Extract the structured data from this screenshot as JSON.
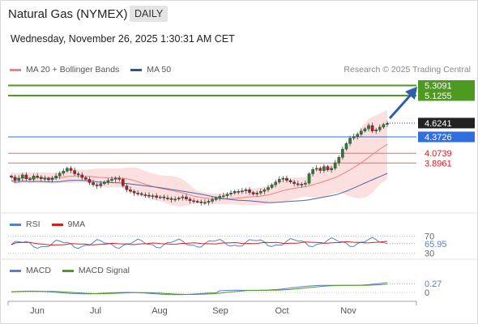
{
  "header": {
    "title": "Natural Gas (NYMEX)",
    "period": "DAILY",
    "datetime": "Wednesday, November 26, 2025 1:30:31 AM CET"
  },
  "legend_main": [
    {
      "label": "MA 20 + Bollinger Bands",
      "color": "#f28080"
    },
    {
      "label": "MA 50",
      "color": "#2f5597"
    }
  ],
  "credit": "Research © 2025 Trading Central",
  "legend_rsi": [
    {
      "label": "RSI",
      "color": "#5b7fcf"
    },
    {
      "label": "9MA",
      "color": "#d62020"
    }
  ],
  "legend_macd": [
    {
      "label": "MACD",
      "color": "#5b7fcf"
    },
    {
      "label": "MACD Signal",
      "color": "#4e9a20"
    }
  ],
  "chart_data": {
    "type": "candlestick",
    "x_labels": [
      "Jun",
      "Jul",
      "Aug",
      "Sep",
      "Oct",
      "Nov"
    ],
    "closes": [
      3.64,
      3.58,
      3.62,
      3.68,
      3.61,
      3.6,
      3.66,
      3.64,
      3.61,
      3.62,
      3.59,
      3.62,
      3.66,
      3.71,
      3.75,
      3.8,
      3.76,
      3.7,
      3.68,
      3.63,
      3.6,
      3.54,
      3.5,
      3.48,
      3.52,
      3.55,
      3.58,
      3.6,
      3.62,
      3.6,
      3.48,
      3.41,
      3.38,
      3.35,
      3.34,
      3.32,
      3.31,
      3.29,
      3.3,
      3.27,
      3.28,
      3.26,
      3.25,
      3.23,
      3.24,
      3.26,
      3.28,
      3.24,
      3.21,
      3.2,
      3.19,
      3.17,
      3.18,
      3.2,
      3.23,
      3.26,
      3.29,
      3.3,
      3.33,
      3.35,
      3.38,
      3.37,
      3.39,
      3.41,
      3.36,
      3.33,
      3.35,
      3.38,
      3.41,
      3.45,
      3.5,
      3.55,
      3.6,
      3.62,
      3.58,
      3.55,
      3.52,
      3.5,
      3.51,
      3.53,
      3.7,
      3.78,
      3.8,
      3.76,
      3.83,
      3.77,
      3.8,
      3.9,
      4.0,
      4.15,
      4.25,
      4.35,
      4.38,
      4.42,
      4.48,
      4.52,
      4.58,
      4.48,
      4.5,
      4.55,
      4.6,
      4.62
    ],
    "y_labels": [
      {
        "value": 5.3091,
        "text": "5.3091",
        "style": "box",
        "color": "#4e9a20"
      },
      {
        "value": 5.1255,
        "text": "5.1255",
        "style": "box",
        "color": "#4e9a20"
      },
      {
        "value": 4.6241,
        "text": "4.6241",
        "style": "box",
        "color": "#222222"
      },
      {
        "value": 4.3726,
        "text": "4.3726",
        "style": "box",
        "color": "#2f6fe0"
      },
      {
        "value": 4.0739,
        "text": "4.0739",
        "style": "text",
        "color": "#d62020"
      },
      {
        "value": 3.8961,
        "text": "3.8961",
        "style": "text",
        "color": "#d62020"
      }
    ],
    "levels": [
      {
        "value": 5.3091,
        "color": "#4e9a20",
        "width": 2
      },
      {
        "value": 5.1255,
        "color": "#4e9a20",
        "width": 2
      },
      {
        "value": 4.6241,
        "color": "#444444",
        "width": 1,
        "dash": true
      },
      {
        "value": 4.3726,
        "color": "#2f6fe0",
        "width": 1
      },
      {
        "value": 4.0739,
        "color": "#e07070",
        "width": 1
      },
      {
        "value": 3.8961,
        "color": "#e07070",
        "width": 1
      }
    ],
    "ylim": [
      3.0,
      5.45
    ],
    "rsi": {
      "labels": [
        "70",
        "65.95",
        "30"
      ],
      "values": [
        55,
        54,
        56,
        53,
        50,
        48,
        45,
        46,
        47,
        52,
        58,
        62,
        65,
        66
      ]
    },
    "macd": {
      "labels": [
        "0.27",
        "0"
      ],
      "value": 0.27
    }
  }
}
